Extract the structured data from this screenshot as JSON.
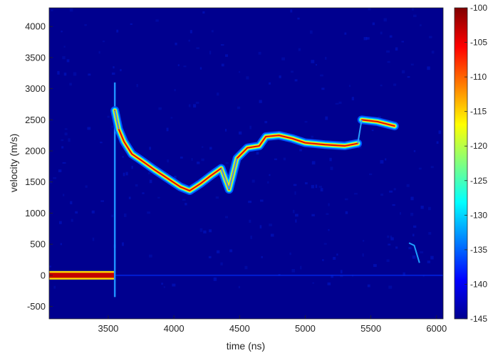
{
  "chart_data": {
    "type": "heatmap",
    "title": "",
    "xlabel": "time (ns)",
    "ylabel": "velocity (m/s)",
    "xlim": [
      3050,
      6050
    ],
    "ylim": [
      -700,
      4300
    ],
    "xticks": [
      3500,
      4000,
      4500,
      5000,
      5500,
      6000
    ],
    "yticks": [
      -500,
      0,
      500,
      1000,
      1500,
      2000,
      2500,
      3000,
      3500,
      4000
    ],
    "colormap": "jet",
    "background_color": "#00008f",
    "colorbar": {
      "min": -145,
      "max": -100,
      "ticks": [
        -100,
        -105,
        -110,
        -115,
        -120,
        -125,
        -130,
        -135,
        -140,
        -145
      ],
      "tick_labels": [
        "-100",
        "-105",
        "-110",
        "-115",
        "-120",
        "-125",
        "-130",
        "-135",
        "-140",
        "-145"
      ]
    },
    "baseline_band": {
      "x": [
        3050,
        3550
      ],
      "velocity": 0
    },
    "velocity_trace": [
      {
        "time": 3550,
        "velocity": 2650
      },
      {
        "time": 3580,
        "velocity": 2350
      },
      {
        "time": 3620,
        "velocity": 2150
      },
      {
        "time": 3680,
        "velocity": 1950
      },
      {
        "time": 3750,
        "velocity": 1850
      },
      {
        "time": 3850,
        "velocity": 1700
      },
      {
        "time": 3950,
        "velocity": 1560
      },
      {
        "time": 4050,
        "velocity": 1420
      },
      {
        "time": 4120,
        "velocity": 1360
      },
      {
        "time": 4200,
        "velocity": 1470
      },
      {
        "time": 4280,
        "velocity": 1600
      },
      {
        "time": 4360,
        "velocity": 1720
      },
      {
        "time": 4420,
        "velocity": 1380
      },
      {
        "time": 4480,
        "velocity": 1880
      },
      {
        "time": 4560,
        "velocity": 2050
      },
      {
        "time": 4650,
        "velocity": 2080
      },
      {
        "time": 4700,
        "velocity": 2230
      },
      {
        "time": 4800,
        "velocity": 2250
      },
      {
        "time": 4900,
        "velocity": 2200
      },
      {
        "time": 5000,
        "velocity": 2130
      },
      {
        "time": 5150,
        "velocity": 2100
      },
      {
        "time": 5300,
        "velocity": 2080
      },
      {
        "time": 5400,
        "velocity": 2120
      },
      {
        "time": 5430,
        "velocity": 2500
      },
      {
        "time": 5550,
        "velocity": 2470
      },
      {
        "time": 5680,
        "velocity": 2400
      }
    ]
  }
}
